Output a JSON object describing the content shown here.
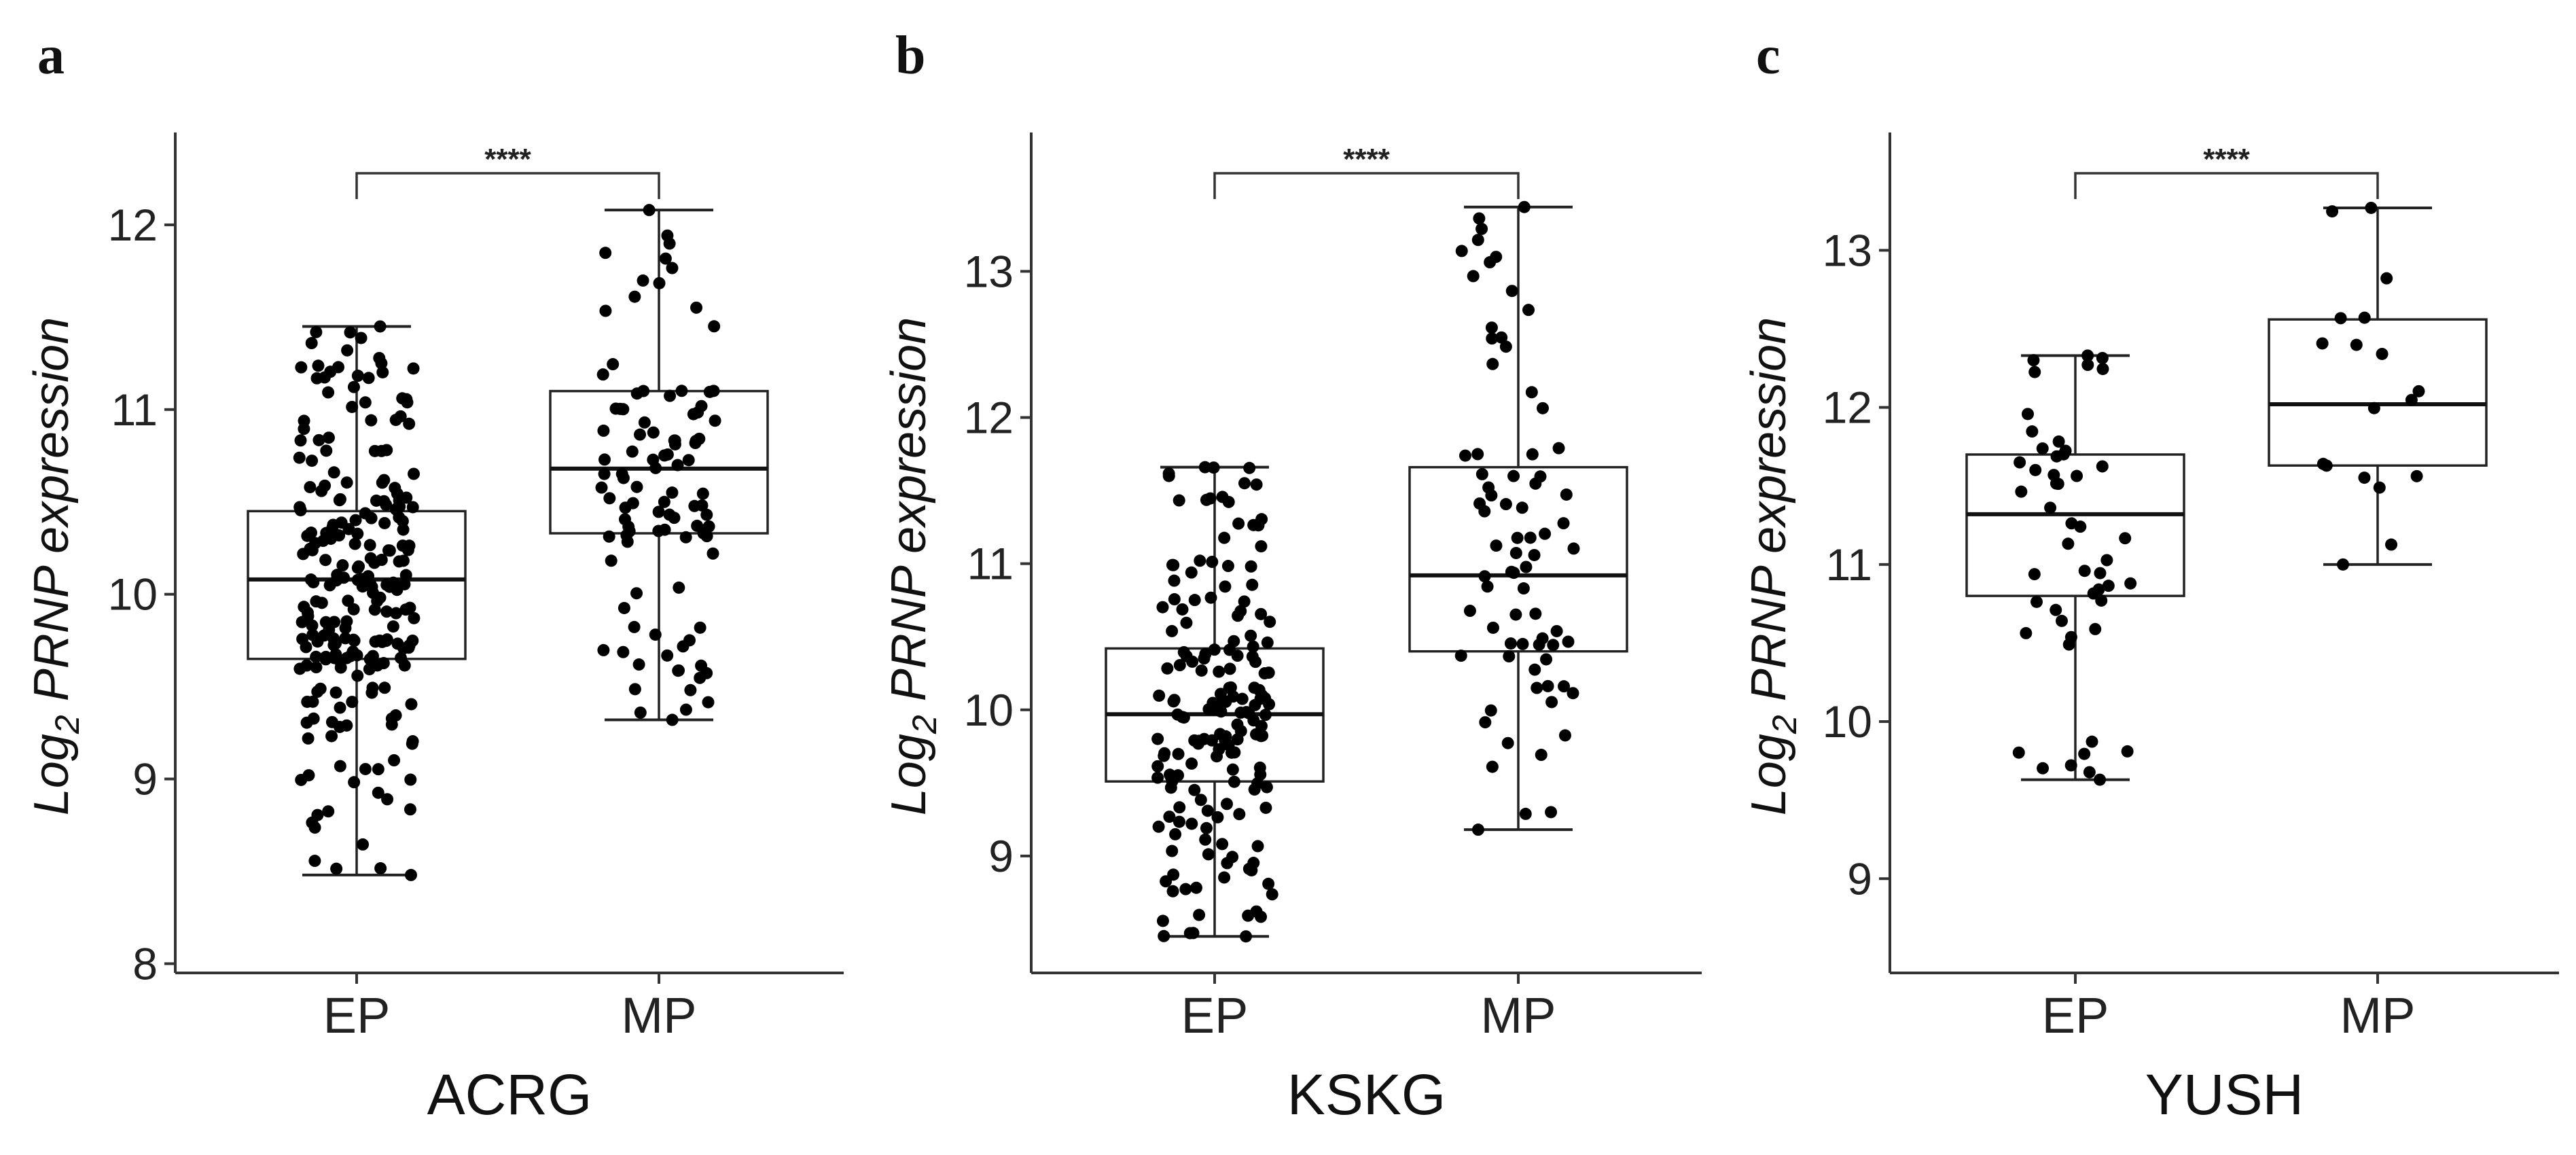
{
  "chart_data": [
    {
      "type": "box",
      "panel": "a",
      "xlabel": "ACRG",
      "ylabel_parts": [
        "Log",
        "2",
        " PRNP expression"
      ],
      "ylim": [
        7.95,
        12.5
      ],
      "yticks": [
        8,
        9,
        10,
        11,
        12
      ],
      "categories": [
        "EP",
        "MP"
      ],
      "boxes": [
        {
          "category": "EP",
          "whisker_low": 8.48,
          "q1": 9.65,
          "median": 10.08,
          "q3": 10.45,
          "whisker_high": 11.45,
          "n_points": 230
        },
        {
          "category": "MP",
          "whisker_low": 9.32,
          "q1": 10.33,
          "median": 10.68,
          "q3": 11.1,
          "whisker_high": 12.08,
          "n_points": 100
        }
      ],
      "significance": {
        "label": "****",
        "between": [
          "EP",
          "MP"
        ]
      }
    },
    {
      "type": "box",
      "panel": "b",
      "xlabel": "KSKG",
      "ylabel_parts": [
        "Log",
        "2",
        " PRNP expression"
      ],
      "ylim": [
        8.2,
        13.95
      ],
      "yticks": [
        9,
        10,
        11,
        12,
        13
      ],
      "categories": [
        "EP",
        "MP"
      ],
      "boxes": [
        {
          "category": "EP",
          "whisker_low": 8.45,
          "q1": 9.51,
          "median": 9.97,
          "q3": 10.42,
          "whisker_high": 11.66,
          "n_points": 170
        },
        {
          "category": "MP",
          "whisker_low": 9.18,
          "q1": 10.4,
          "median": 10.92,
          "q3": 11.66,
          "whisker_high": 13.44,
          "n_points": 75
        }
      ],
      "significance": {
        "label": "****",
        "between": [
          "EP",
          "MP"
        ]
      }
    },
    {
      "type": "box",
      "panel": "c",
      "xlabel": "YUSH",
      "ylabel_parts": [
        "Log",
        "2",
        " PRNP expression"
      ],
      "ylim": [
        8.4,
        13.75
      ],
      "yticks": [
        9,
        10,
        11,
        12,
        13
      ],
      "categories": [
        "EP",
        "MP"
      ],
      "boxes": [
        {
          "category": "EP",
          "whisker_low": 9.63,
          "q1": 10.8,
          "median": 11.32,
          "q3": 11.7,
          "whisker_high": 12.33,
          "n_points": 50
        },
        {
          "category": "MP",
          "whisker_low": 11.0,
          "q1": 11.63,
          "median": 12.02,
          "q3": 12.56,
          "whisker_high": 13.27,
          "n_points": 18
        }
      ],
      "significance": {
        "label": "****",
        "between": [
          "EP",
          "MP"
        ]
      }
    }
  ]
}
